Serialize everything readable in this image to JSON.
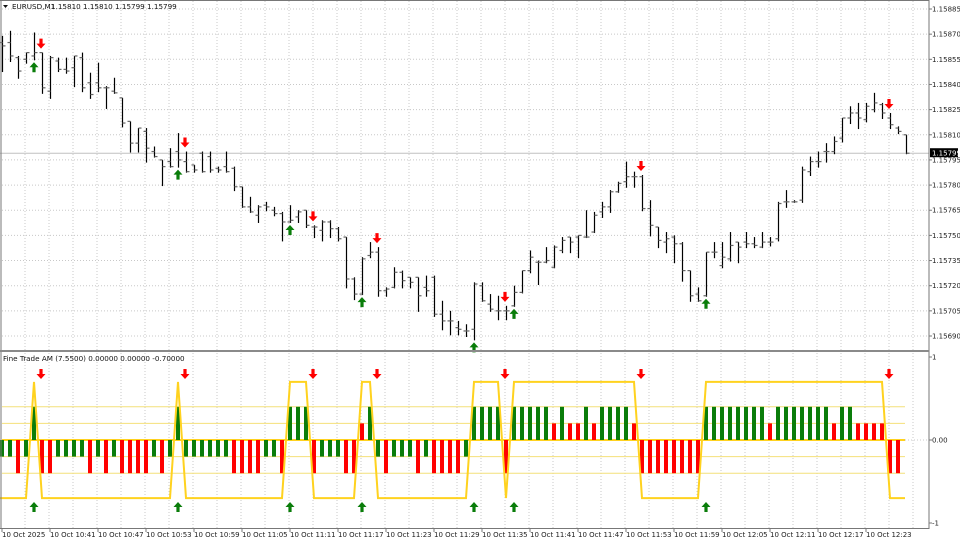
{
  "header": {
    "menu_icon": "triangle-down-icon",
    "symbol": "EURUSD,M1",
    "ohlc_text": "1.15810 1.15810 1.15799 1.15799"
  },
  "indicator_header": {
    "title": "Fine Trade AM (7.5500) 0.00000 0.00000 -0.70000"
  },
  "colors": {
    "bar": "#000000",
    "bull_histogram": "#0a7d0a",
    "bear_histogram": "#ff0000",
    "signal_line": "#ffd21f",
    "level_lines": "#f4e07a",
    "buy_arrow": "#0a7d0a",
    "sell_arrow": "#ff0000",
    "price_label_bg": "#000000",
    "grid": "#c8c8c8"
  },
  "chart_data": [
    {
      "type": "ohlc",
      "symbol": "EURUSD",
      "timeframe": "M1",
      "current_price": "1.15799",
      "y_ticks": [
        "1.15885",
        "1.15870",
        "1.15855",
        "1.15840",
        "1.15825",
        "1.15810",
        "1.15795",
        "1.15780",
        "1.15765",
        "1.15750",
        "1.15735",
        "1.15720",
        "1.15705",
        "1.15690"
      ],
      "x_ticks": [
        "10 Oct 2025",
        "10 Oct 10:41",
        "10 Oct 10:47",
        "10 Oct 10:53",
        "10 Oct 10:59",
        "10 Oct 11:05",
        "10 Oct 11:11",
        "10 Oct 11:17",
        "10 Oct 11:23",
        "10 Oct 11:29",
        "10 Oct 11:35",
        "10 Oct 11:41",
        "10 Oct 11:47",
        "10 Oct 11:53",
        "10 Oct 11:59",
        "10 Oct 12:05",
        "10 Oct 12:11",
        "10 Oct 12:17",
        "10 Oct 12:23"
      ],
      "grid": true,
      "open": [
        1.15865,
        1.15865,
        1.15856,
        1.15855,
        1.15857,
        1.15859,
        1.15836,
        1.15854,
        1.15849,
        1.1585,
        1.15856,
        1.15841,
        1.15841,
        1.15838,
        1.15836,
        1.15832,
        1.15818,
        1.15805,
        1.15812,
        1.158,
        1.15795,
        1.15794,
        1.158,
        1.15794,
        1.15792,
        1.15799,
        1.15797,
        1.1579,
        1.15791,
        1.1579,
        1.15779,
        1.15767,
        1.15762,
        1.15768,
        1.15765,
        1.15763,
        1.15758,
        1.15761,
        1.15765,
        1.15755,
        1.15753,
        1.15758,
        1.15754,
        1.15749,
        1.15724,
        1.15715,
        1.15738,
        1.1574,
        1.15717,
        1.15719,
        1.15728,
        1.15725,
        1.15725,
        1.15719,
        1.15725,
        1.15703,
        1.15699,
        1.15695,
        1.15693,
        1.15694,
        1.1572,
        1.15709,
        1.15705,
        1.15705,
        1.15708,
        1.15716,
        1.15729,
        1.15734,
        1.15734,
        1.15731,
        1.15741,
        1.15749,
        1.15749,
        1.15749,
        1.15752,
        1.15764,
        1.15767,
        1.15776,
        1.15782,
        1.15785,
        1.15785,
        1.15766,
        1.15755,
        1.15746,
        1.15749,
        1.15745,
        1.15729,
        1.15715,
        1.15714,
        1.1574,
        1.15732,
        1.15736,
        1.15746,
        1.15746,
        1.15745,
        1.15743,
        1.15746,
        1.15748,
        1.1577,
        1.1577,
        1.15771,
        1.15788,
        1.15794,
        1.158,
        1.158,
        1.15808,
        1.1582,
        1.15823,
        1.15819,
        1.15825,
        1.15828,
        1.1582,
        1.15814,
        1.1581
      ],
      "high": [
        1.15869,
        1.15872,
        1.15857,
        1.15859,
        1.15871,
        1.15859,
        1.15857,
        1.15856,
        1.15856,
        1.15857,
        1.15859,
        1.15847,
        1.15853,
        1.15839,
        1.15844,
        1.15832,
        1.15818,
        1.15814,
        1.15814,
        1.15803,
        1.15795,
        1.15802,
        1.15811,
        1.158,
        1.15792,
        1.158,
        1.158,
        1.15791,
        1.158,
        1.15791,
        1.15779,
        1.15773,
        1.15768,
        1.1577,
        1.15767,
        1.15764,
        1.15768,
        1.15765,
        1.15765,
        1.15756,
        1.15759,
        1.15759,
        1.15755,
        1.15749,
        1.15725,
        1.15737,
        1.15746,
        1.15743,
        1.15719,
        1.15731,
        1.15729,
        1.15725,
        1.15725,
        1.15726,
        1.15726,
        1.15711,
        1.15705,
        1.15699,
        1.15697,
        1.15722,
        1.15722,
        1.15715,
        1.15714,
        1.15708,
        1.1572,
        1.15729,
        1.15741,
        1.15735,
        1.15743,
        1.15744,
        1.15749,
        1.15749,
        1.1575,
        1.15765,
        1.15764,
        1.1577,
        1.15777,
        1.15782,
        1.15794,
        1.15788,
        1.15786,
        1.15771,
        1.15755,
        1.15752,
        1.1575,
        1.15746,
        1.15729,
        1.15719,
        1.1574,
        1.15746,
        1.15746,
        1.15752,
        1.15746,
        1.15752,
        1.15749,
        1.15752,
        1.15749,
        1.1577,
        1.15777,
        1.15771,
        1.15791,
        1.15797,
        1.158,
        1.15805,
        1.15809,
        1.1582,
        1.15827,
        1.15829,
        1.15829,
        1.15835,
        1.15829,
        1.15823,
        1.15815,
        1.1581
      ],
      "low": [
        1.15848,
        1.15854,
        1.15844,
        1.15853,
        1.15855,
        1.15835,
        1.15832,
        1.15848,
        1.15847,
        1.15839,
        1.15836,
        1.15832,
        1.15836,
        1.15826,
        1.15835,
        1.15815,
        1.158,
        1.158,
        1.15794,
        1.15797,
        1.1578,
        1.15791,
        1.15791,
        1.15788,
        1.15788,
        1.15788,
        1.15788,
        1.15788,
        1.15788,
        1.15777,
        1.15767,
        1.15764,
        1.15758,
        1.15765,
        1.15762,
        1.15747,
        1.15758,
        1.15758,
        1.15755,
        1.15749,
        1.15747,
        1.15749,
        1.15747,
        1.15719,
        1.15712,
        1.15715,
        1.15737,
        1.15714,
        1.15714,
        1.15719,
        1.15719,
        1.15719,
        1.15705,
        1.15714,
        1.15702,
        1.15694,
        1.15691,
        1.15691,
        1.1569,
        1.15688,
        1.15711,
        1.15705,
        1.157,
        1.157,
        1.15708,
        1.15716,
        1.15728,
        1.15721,
        1.15734,
        1.15731,
        1.1574,
        1.1574,
        1.15737,
        1.15749,
        1.15752,
        1.15761,
        1.15764,
        1.15776,
        1.15779,
        1.15779,
        1.15765,
        1.1575,
        1.15743,
        1.1574,
        1.15734,
        1.15723,
        1.15711,
        1.15711,
        1.15714,
        1.15737,
        1.15731,
        1.15735,
        1.15734,
        1.15743,
        1.15743,
        1.15743,
        1.15744,
        1.15747,
        1.15767,
        1.1577,
        1.1577,
        1.15786,
        1.15791,
        1.15794,
        1.15799,
        1.15806,
        1.15817,
        1.15814,
        1.15818,
        1.15824,
        1.1582,
        1.15814,
        1.15811,
        1.15799
      ],
      "close": [
        1.15863,
        1.15857,
        1.15848,
        1.15859,
        1.15859,
        1.15838,
        1.15856,
        1.15849,
        1.15848,
        1.15857,
        1.15838,
        1.15834,
        1.15838,
        1.15838,
        1.15835,
        1.15817,
        1.15805,
        1.15814,
        1.15802,
        1.15797,
        1.15791,
        1.15791,
        1.15795,
        1.15788,
        1.15789,
        1.15788,
        1.15789,
        1.15789,
        1.15788,
        1.15779,
        1.15767,
        1.15764,
        1.15767,
        1.15767,
        1.15763,
        1.15758,
        1.15759,
        1.15764,
        1.15756,
        1.15755,
        1.15758,
        1.15754,
        1.15748,
        1.15724,
        1.15715,
        1.15736,
        1.1574,
        1.15717,
        1.15718,
        1.15728,
        1.15723,
        1.15722,
        1.15714,
        1.15717,
        1.15703,
        1.15699,
        1.15699,
        1.15694,
        1.15693,
        1.15721,
        1.15711,
        1.15706,
        1.15705,
        1.15705,
        1.15716,
        1.15729,
        1.15737,
        1.15734,
        1.15735,
        1.15743,
        1.15747,
        1.15746,
        1.1575,
        1.15749,
        1.15762,
        1.15767,
        1.15776,
        1.15781,
        1.15785,
        1.15785,
        1.15766,
        1.15756,
        1.15747,
        1.15748,
        1.15745,
        1.15729,
        1.15714,
        1.15711,
        1.1574,
        1.1574,
        1.15737,
        1.15744,
        1.15743,
        1.15745,
        1.15744,
        1.15746,
        1.15746,
        1.15769,
        1.1577,
        1.1577,
        1.15789,
        1.15794,
        1.15794,
        1.158,
        1.15806,
        1.1582,
        1.15823,
        1.1582,
        1.15827,
        1.15829,
        1.15823,
        1.15816,
        1.15812,
        1.15799
      ]
    },
    {
      "type": "bar",
      "name": "Fine Trade AM",
      "y_ticks": [
        "1",
        "0.00",
        "-1"
      ],
      "ylim": [
        -1,
        1
      ],
      "levels": [
        0.4,
        0.2,
        0,
        -0.2,
        -0.4
      ],
      "signal_line_levels": [
        0.7,
        -0.7
      ],
      "histogram": [
        -0.2,
        -0.2,
        -0.4,
        -0.2,
        0.4,
        -0.4,
        -0.4,
        -0.2,
        -0.2,
        -0.2,
        -0.2,
        -0.4,
        -0.2,
        -0.4,
        -0.2,
        -0.4,
        -0.4,
        -0.4,
        -0.4,
        -0.2,
        -0.4,
        -0.2,
        0.4,
        -0.2,
        -0.2,
        -0.2,
        -0.2,
        -0.2,
        -0.2,
        -0.4,
        -0.4,
        -0.4,
        -0.4,
        -0.2,
        -0.2,
        -0.4,
        0.4,
        0.4,
        0.4,
        -0.4,
        -0.2,
        -0.2,
        -0.2,
        -0.4,
        -0.4,
        0.2,
        0.4,
        -0.2,
        -0.4,
        -0.2,
        -0.2,
        -0.2,
        -0.4,
        -0.2,
        -0.4,
        -0.4,
        -0.4,
        -0.4,
        -0.2,
        0.4,
        0.4,
        0.4,
        0.4,
        -0.4,
        0.4,
        0.4,
        0.4,
        0.4,
        0.4,
        0.2,
        0.4,
        0.2,
        0.2,
        0.4,
        0.2,
        0.4,
        0.4,
        0.4,
        0.4,
        0.2,
        -0.4,
        -0.4,
        -0.4,
        -0.4,
        -0.4,
        -0.4,
        -0.4,
        -0.4,
        0.4,
        0.4,
        0.4,
        0.4,
        0.4,
        0.4,
        0.4,
        0.4,
        0.2,
        0.4,
        0.4,
        0.4,
        0.4,
        0.4,
        0.4,
        0.4,
        0.2,
        0.4,
        0.4,
        0.2,
        0.2,
        0.2,
        0.2,
        -0.4,
        -0.4
      ]
    }
  ]
}
